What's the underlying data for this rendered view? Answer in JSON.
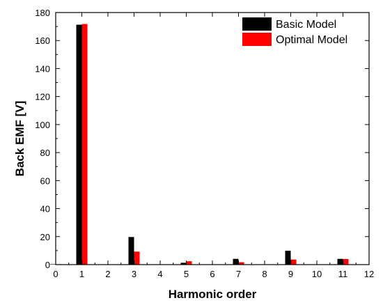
{
  "chart_data": {
    "type": "bar",
    "title": "",
    "xlabel": "Harmonic order",
    "ylabel": "Back EMF [V]",
    "xlim": [
      0,
      12
    ],
    "ylim": [
      0,
      180
    ],
    "x_ticks": [
      "0",
      "1",
      "2",
      "3",
      "4",
      "5",
      "6",
      "7",
      "8",
      "9",
      "10",
      "11",
      "12"
    ],
    "y_ticks": [
      "0",
      "20",
      "40",
      "60",
      "80",
      "100",
      "120",
      "140",
      "160",
      "180"
    ],
    "grid": false,
    "legend_position": "top-right",
    "x": [
      0,
      1,
      3,
      5,
      7,
      9,
      11
    ],
    "series": [
      {
        "name": "Basic Model",
        "color": "#000000",
        "values": [
          0.3,
          171.3,
          19.7,
          1.3,
          4.1,
          9.9,
          4.1
        ]
      },
      {
        "name": "Optimal Model",
        "color": "#ff0000",
        "values": [
          0.3,
          171.8,
          9.3,
          2.4,
          1.7,
          3.6,
          4.0
        ]
      }
    ]
  }
}
